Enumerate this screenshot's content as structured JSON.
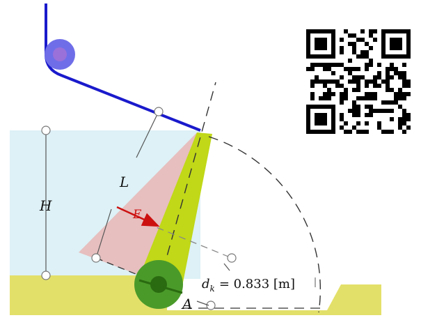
{
  "diagram": {
    "labels": {
      "length": "L",
      "height": "H",
      "force": "E",
      "hinge": "A",
      "distance_symbol": "d",
      "distance_subscript": "k",
      "distance_value": "= 0.833 [m]"
    },
    "colors": {
      "water": "#ddf1f6",
      "pressure_triangle": "#e8b9b9",
      "gate": "#c0d817",
      "ground": "#e3e06a",
      "rope": "#1a1acc",
      "pulley": "#6f6ee8",
      "pulley_center": "#9a70d9",
      "hinge_outer": "#4a9a2a",
      "hinge_inner": "#2a6a10",
      "force_arrow": "#cc1010",
      "dimension_line": "#555555"
    },
    "qr_code": "qr-code"
  }
}
